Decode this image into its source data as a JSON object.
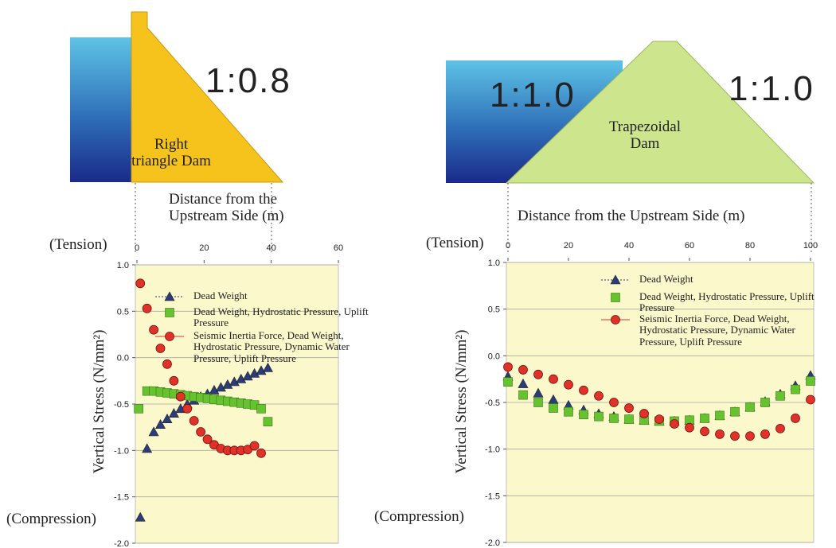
{
  "chart_data": [
    {
      "type": "scatter",
      "diagram": {
        "slope_labels": [
          "1:0.8"
        ],
        "dam_label": "Right triangle Dam"
      },
      "xlabel": "Distance from the Upstream Side (m)",
      "ylabel": "Vertical Stress (N/mm²)",
      "annotations": [
        "(Tension)",
        "(Compression)"
      ],
      "xlim": [
        0,
        60
      ],
      "xticks": [
        0,
        20,
        40,
        60
      ],
      "ylim": [
        -2,
        1
      ],
      "yticks": [
        {
          "value": -2,
          "label": "-2.0"
        },
        -1.5,
        {
          "value": -1,
          "label": "-1.0"
        },
        -0.5,
        {
          "value": 0,
          "label": "0.0"
        },
        0.5,
        {
          "value": 1,
          "label": "1.0"
        }
      ],
      "grid": true,
      "series": [
        {
          "name": "Dead Weight",
          "color": "#2b3c78",
          "marker": "triangle",
          "x": [
            1,
            3,
            5,
            7,
            9,
            11,
            13,
            15,
            17,
            19,
            21,
            23,
            25,
            27,
            29,
            31,
            33,
            35,
            37,
            39
          ],
          "values": [
            -1.72,
            -0.98,
            -0.8,
            -0.72,
            -0.66,
            -0.6,
            -0.55,
            -0.5,
            -0.46,
            -0.42,
            -0.39,
            -0.35,
            -0.32,
            -0.29,
            -0.26,
            -0.23,
            -0.2,
            -0.17,
            -0.14,
            -0.11
          ]
        },
        {
          "name": "Dead Weight, Hydrostatic Pressure, Uplift Pressure",
          "color": "#66c22e",
          "marker": "square",
          "x": [
            0.5,
            3,
            5,
            7,
            9,
            11,
            13,
            15,
            17,
            19,
            21,
            23,
            25,
            27,
            29,
            31,
            33,
            35,
            37,
            39
          ],
          "values": [
            -0.55,
            -0.36,
            -0.36,
            -0.37,
            -0.38,
            -0.39,
            -0.4,
            -0.41,
            -0.42,
            -0.43,
            -0.44,
            -0.45,
            -0.46,
            -0.47,
            -0.48,
            -0.49,
            -0.5,
            -0.51,
            -0.55,
            -0.69
          ]
        },
        {
          "name": "Seismic Inertia Force, Dead Weight, Hydrostatic Pressure, Dynamic Water Pressure, Uplift Pressure",
          "color": "#e03228",
          "marker": "circle",
          "x": [
            1,
            3,
            5,
            7,
            9,
            11,
            13,
            15,
            17,
            19,
            21,
            23,
            25,
            27,
            29,
            31,
            33,
            35,
            37
          ],
          "values": [
            0.8,
            0.53,
            0.3,
            0.1,
            -0.07,
            -0.25,
            -0.42,
            -0.55,
            -0.68,
            -0.8,
            -0.88,
            -0.94,
            -0.98,
            -1.0,
            -1.0,
            -1.0,
            -0.99,
            -0.95,
            -1.03
          ]
        }
      ]
    },
    {
      "type": "scatter",
      "diagram": {
        "slope_labels": [
          "1:1.0",
          "1:1.0"
        ],
        "dam_label": "Trapezoidal Dam"
      },
      "xlabel": "Distance from the Upstream Side (m)",
      "ylabel": "Vertical Stress (N/mm²)",
      "annotations": [
        "(Tension)",
        "(Compression)"
      ],
      "xlim": [
        0,
        100
      ],
      "xticks": [
        0,
        20,
        40,
        60,
        80,
        100
      ],
      "ylim": [
        -2,
        1
      ],
      "yticks": [
        {
          "value": -2,
          "label": "-2.0"
        },
        -1.5,
        {
          "value": -1,
          "label": "-1.0"
        },
        -0.5,
        {
          "value": 0,
          "label": "0.0"
        },
        0.5,
        {
          "value": 1,
          "label": "1.0"
        }
      ],
      "grid": true,
      "series": [
        {
          "name": "Dead Weight",
          "color": "#2b3c78",
          "marker": "triangle",
          "x": [
            0,
            5,
            10,
            15,
            20,
            25,
            30,
            35,
            40,
            45,
            50,
            55,
            60,
            65,
            70,
            75,
            80,
            85,
            90,
            95,
            100
          ],
          "values": [
            -0.22,
            -0.3,
            -0.4,
            -0.47,
            -0.53,
            -0.58,
            -0.62,
            -0.65,
            -0.68,
            -0.69,
            -0.7,
            -0.7,
            -0.69,
            -0.67,
            -0.64,
            -0.6,
            -0.55,
            -0.49,
            -0.41,
            -0.32,
            -0.21
          ]
        },
        {
          "name": "Dead Weight, Hydrostatic Pressure, Uplift Pressure",
          "color": "#66c22e",
          "marker": "square",
          "x": [
            0,
            5,
            10,
            15,
            20,
            25,
            30,
            35,
            40,
            45,
            50,
            55,
            60,
            65,
            70,
            75,
            80,
            85,
            90,
            95,
            100
          ],
          "values": [
            -0.28,
            -0.42,
            -0.5,
            -0.56,
            -0.6,
            -0.63,
            -0.65,
            -0.67,
            -0.68,
            -0.69,
            -0.7,
            -0.7,
            -0.69,
            -0.67,
            -0.64,
            -0.6,
            -0.55,
            -0.5,
            -0.43,
            -0.36,
            -0.27
          ]
        },
        {
          "name": "Seismic Inertia Force, Dead Weight, Hydrostatic Pressure, Dynamic Water Pressure, Uplift Pressure",
          "color": "#e03228",
          "marker": "circle",
          "x": [
            0,
            5,
            10,
            15,
            20,
            25,
            30,
            35,
            40,
            45,
            50,
            55,
            60,
            65,
            70,
            75,
            80,
            85,
            90,
            95,
            100
          ],
          "values": [
            -0.12,
            -0.15,
            -0.2,
            -0.25,
            -0.31,
            -0.37,
            -0.43,
            -0.5,
            -0.56,
            -0.62,
            -0.68,
            -0.73,
            -0.77,
            -0.81,
            -0.84,
            -0.86,
            -0.86,
            -0.84,
            -0.78,
            -0.67,
            -0.47
          ]
        }
      ]
    }
  ]
}
